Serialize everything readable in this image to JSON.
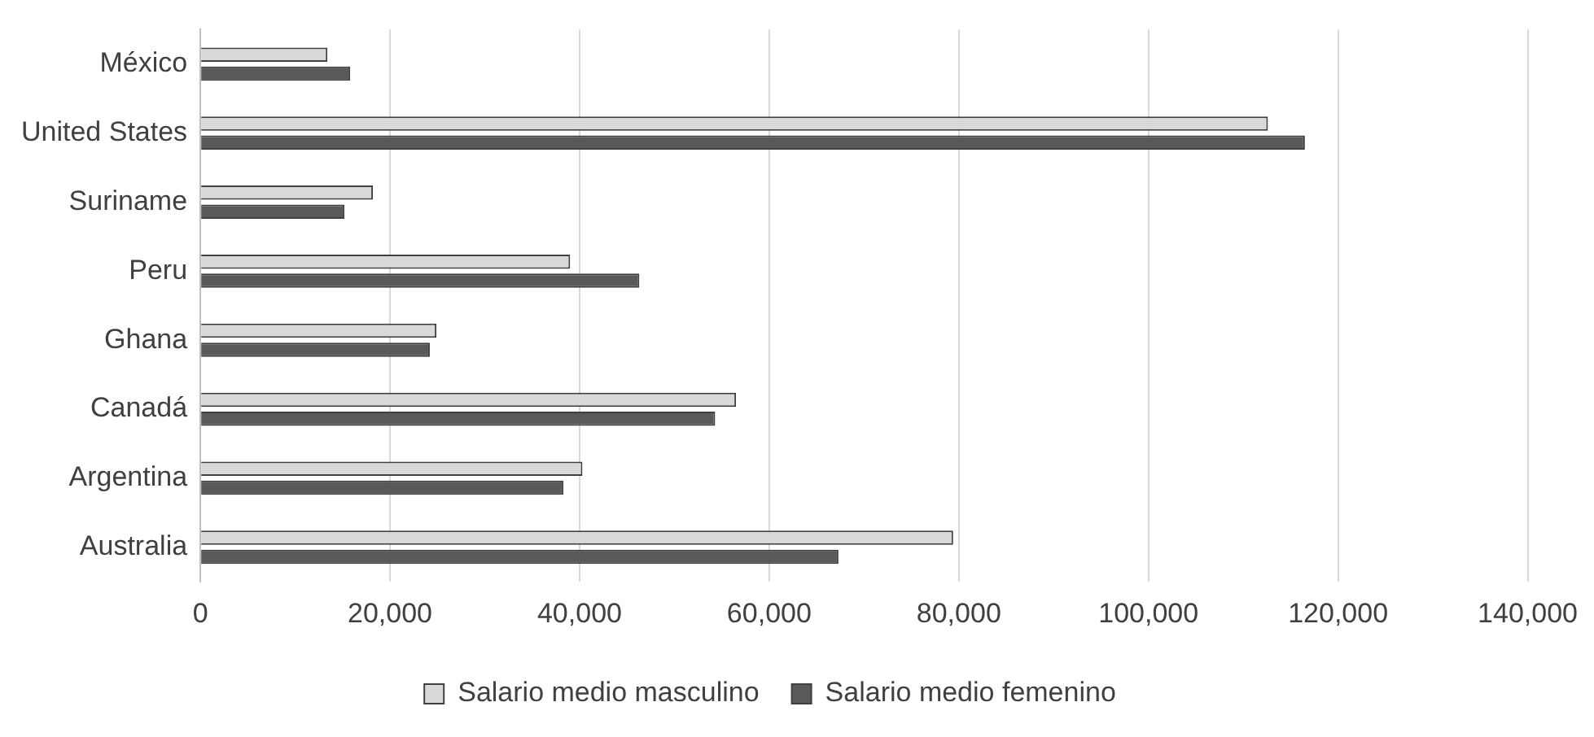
{
  "chart_data": {
    "type": "bar",
    "orientation": "horizontal",
    "categories": [
      "México",
      "United States",
      "Suriname",
      "Peru",
      "Ghana",
      "Canadá",
      "Argentina",
      "Australia"
    ],
    "series": [
      {
        "name": "Salario medio masculino",
        "color": "#d9d9d9",
        "values": [
          13400,
          112600,
          18200,
          39000,
          24900,
          56500,
          40300,
          79400
        ]
      },
      {
        "name": "Salario medio femenino",
        "color": "#595959",
        "values": [
          15800,
          116500,
          15200,
          46300,
          24200,
          54300,
          38300,
          67300
        ]
      }
    ],
    "xlim": [
      0,
      140000
    ],
    "xticks": [
      {
        "value": 0,
        "label": "0"
      },
      {
        "value": 20000,
        "label": "20,000"
      },
      {
        "value": 40000,
        "label": "40,000"
      },
      {
        "value": 60000,
        "label": "60,000"
      },
      {
        "value": 80000,
        "label": "80,000"
      },
      {
        "value": 100000,
        "label": "100,000"
      },
      {
        "value": 120000,
        "label": "120,000"
      },
      {
        "value": 140000,
        "label": "140,000"
      }
    ],
    "grid": "x",
    "legend": "bottom"
  }
}
